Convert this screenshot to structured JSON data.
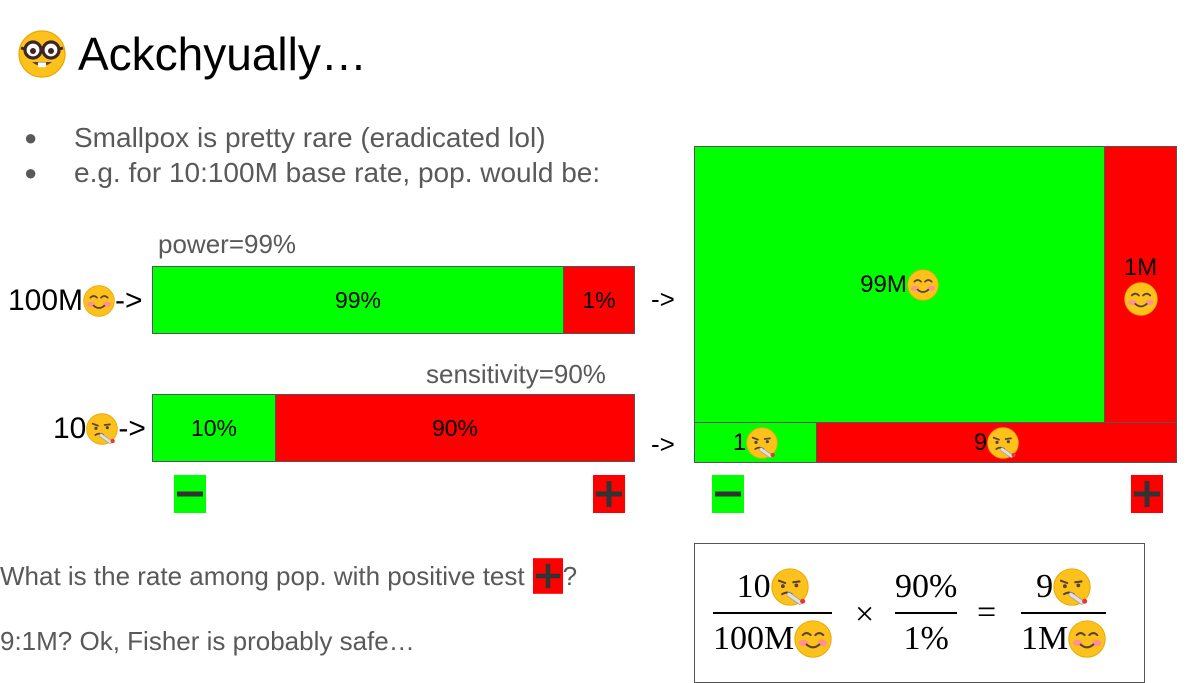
{
  "title": "Ackchyually…",
  "bullets": [
    "Smallpox is pretty rare (eradicated lol)",
    "e.g. for 10:100M base rate, pop. would be:"
  ],
  "power_label": "power=99%",
  "sensitivity_label": "sensitivity=90%",
  "healthy_row": {
    "count": "100M",
    "arrow": "->",
    "neg_pct": "99%",
    "pos_pct": "1%",
    "neg_fraction": 0.99
  },
  "sick_row": {
    "count": "10",
    "arrow": "->",
    "neg_pct": "10%",
    "pos_pct": "90%",
    "neg_fraction": 0.1
  },
  "mid_arrows": [
    "->",
    "->"
  ],
  "population": {
    "healthy_neg": "99M",
    "healthy_pos": "1M",
    "sick_neg": "1",
    "sick_pos": "9"
  },
  "question": "What is the rate among pop. with positive test",
  "question_end": "?",
  "answer": "9:1M? Ok, Fisher is probably safe…",
  "formula": {
    "f1_num": "10",
    "f1_den": "100M",
    "times": "×",
    "f2_num": "90%",
    "f2_den": "1%",
    "equals": "=",
    "f3_num": "9",
    "f3_den": "1M"
  },
  "colors": {
    "green": "#00ff00",
    "red": "#ff0000",
    "text_gray": "#595959"
  }
}
